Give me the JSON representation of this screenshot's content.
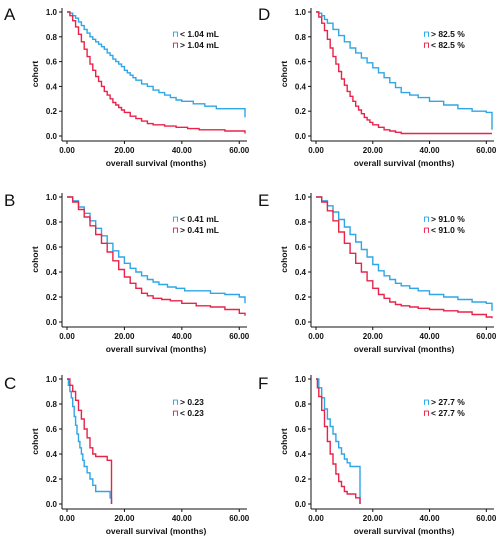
{
  "colors": {
    "blue": "#2fa6e6",
    "red": "#e8244a",
    "axis": "#111111"
  },
  "chart_data": [
    {
      "type": "line",
      "panel": "A",
      "xlabel": "overall survival (months)",
      "ylabel": "cohort",
      "xlim": [
        0,
        62
      ],
      "ylim": [
        0,
        1
      ],
      "xticks": [
        "0.00",
        "20.00",
        "40.00",
        "60.00"
      ],
      "yticks": [
        "0.0",
        "0.2",
        "0.4",
        "0.6",
        "0.8",
        "1.0"
      ],
      "legend": [
        {
          "marker": "⊓",
          "text": "< 1.04 mL",
          "color": "blue"
        },
        {
          "marker": "⊓",
          "text": "> 1.04 mL",
          "color": "red"
        }
      ],
      "series": [
        {
          "color": "blue",
          "x": [
            0,
            1,
            2,
            3,
            4,
            5,
            6,
            7,
            8,
            9,
            10,
            11,
            12,
            13,
            14,
            15,
            16,
            17,
            18,
            19,
            20,
            21,
            22,
            23,
            24,
            26,
            28,
            30,
            32,
            34,
            36,
            38,
            40,
            44,
            48,
            52,
            56,
            60,
            62
          ],
          "y": [
            1.0,
            0.99,
            0.97,
            0.95,
            0.92,
            0.89,
            0.86,
            0.83,
            0.8,
            0.78,
            0.76,
            0.74,
            0.72,
            0.7,
            0.67,
            0.65,
            0.62,
            0.6,
            0.58,
            0.56,
            0.53,
            0.51,
            0.49,
            0.47,
            0.45,
            0.42,
            0.4,
            0.37,
            0.35,
            0.33,
            0.31,
            0.29,
            0.28,
            0.26,
            0.24,
            0.22,
            0.22,
            0.22,
            0.15
          ]
        },
        {
          "color": "red",
          "x": [
            0,
            1,
            2,
            3,
            4,
            5,
            6,
            7,
            8,
            9,
            10,
            11,
            12,
            13,
            14,
            15,
            16,
            17,
            18,
            19,
            20,
            22,
            24,
            26,
            28,
            30,
            34,
            38,
            42,
            46,
            50,
            55,
            60,
            62
          ],
          "y": [
            1.0,
            0.97,
            0.93,
            0.88,
            0.82,
            0.76,
            0.7,
            0.64,
            0.58,
            0.53,
            0.48,
            0.44,
            0.4,
            0.36,
            0.33,
            0.3,
            0.27,
            0.25,
            0.23,
            0.21,
            0.19,
            0.16,
            0.14,
            0.12,
            0.1,
            0.09,
            0.08,
            0.07,
            0.06,
            0.05,
            0.05,
            0.04,
            0.04,
            0.02
          ]
        }
      ]
    },
    {
      "type": "line",
      "panel": "B",
      "xlabel": "overall survival (months)",
      "ylabel": "cohort",
      "xlim": [
        0,
        62
      ],
      "ylim": [
        0,
        1
      ],
      "xticks": [
        "0.00",
        "20.00",
        "40.00",
        "60.00"
      ],
      "yticks": [
        "0.0",
        "0.2",
        "0.4",
        "0.6",
        "0.8",
        "1.0"
      ],
      "legend": [
        {
          "marker": "⊓",
          "text": "< 0.41 mL",
          "color": "blue"
        },
        {
          "marker": "⊓",
          "text": "> 0.41 mL",
          "color": "red"
        }
      ],
      "series": [
        {
          "color": "blue",
          "x": [
            0,
            2,
            4,
            6,
            8,
            10,
            12,
            14,
            16,
            18,
            20,
            22,
            24,
            26,
            28,
            30,
            32,
            35,
            38,
            41,
            45,
            50,
            55,
            60,
            62
          ],
          "y": [
            1.0,
            0.97,
            0.92,
            0.87,
            0.81,
            0.75,
            0.69,
            0.63,
            0.57,
            0.52,
            0.47,
            0.43,
            0.4,
            0.37,
            0.34,
            0.32,
            0.3,
            0.28,
            0.27,
            0.25,
            0.25,
            0.23,
            0.22,
            0.2,
            0.15
          ]
        },
        {
          "color": "red",
          "x": [
            0,
            2,
            4,
            6,
            8,
            10,
            12,
            14,
            16,
            18,
            20,
            22,
            24,
            26,
            28,
            30,
            33,
            36,
            40,
            45,
            50,
            55,
            60,
            62
          ],
          "y": [
            1.0,
            0.96,
            0.9,
            0.84,
            0.77,
            0.7,
            0.63,
            0.56,
            0.49,
            0.42,
            0.36,
            0.31,
            0.27,
            0.23,
            0.21,
            0.19,
            0.18,
            0.17,
            0.15,
            0.13,
            0.12,
            0.1,
            0.07,
            0.05
          ]
        }
      ]
    },
    {
      "type": "line",
      "panel": "C",
      "xlabel": "overall survival (months)",
      "ylabel": "cohort",
      "xlim": [
        0,
        62
      ],
      "ylim": [
        0,
        1
      ],
      "xticks": [
        "0.00",
        "20.00",
        "40.00",
        "60.00"
      ],
      "yticks": [
        "0.0",
        "0.2",
        "0.4",
        "0.6",
        "0.8",
        "1.0"
      ],
      "legend": [
        {
          "marker": "⊓",
          "text": "> 0.23",
          "color": "blue"
        },
        {
          "marker": "⊓",
          "text": "< 0.23",
          "color": "red"
        }
      ],
      "series": [
        {
          "color": "blue",
          "x": [
            0,
            0.5,
            1,
            1.5,
            2,
            2.5,
            3,
            3.5,
            4,
            4.5,
            5,
            5.5,
            6,
            7,
            8,
            9,
            10,
            11,
            12,
            13,
            14,
            15,
            15.5
          ],
          "y": [
            1.0,
            0.95,
            0.9,
            0.85,
            0.78,
            0.7,
            0.63,
            0.56,
            0.5,
            0.45,
            0.4,
            0.35,
            0.3,
            0.25,
            0.2,
            0.15,
            0.1,
            0.1,
            0.1,
            0.1,
            0.1,
            0.05,
            0.0
          ]
        },
        {
          "color": "red",
          "x": [
            0,
            1,
            2,
            3,
            4,
            5,
            6,
            7,
            8,
            9,
            10,
            11,
            12,
            13,
            14,
            15,
            15.5
          ],
          "y": [
            1.0,
            0.95,
            0.9,
            0.83,
            0.75,
            0.68,
            0.6,
            0.53,
            0.45,
            0.4,
            0.38,
            0.38,
            0.38,
            0.38,
            0.35,
            0.35,
            0.0
          ]
        }
      ]
    },
    {
      "type": "line",
      "panel": "D",
      "xlabel": "overall survival (months)",
      "ylabel": "cohort",
      "xlim": [
        0,
        62
      ],
      "ylim": [
        0,
        1
      ],
      "xticks": [
        "0.00",
        "20.00",
        "40.00",
        "60.00"
      ],
      "yticks": [
        "0.0",
        "0.2",
        "0.4",
        "0.6",
        "0.8",
        "1.0"
      ],
      "legend": [
        {
          "marker": "⊓",
          "text": "> 82.5 %",
          "color": "blue"
        },
        {
          "marker": "⊓",
          "text": "< 82.5 %",
          "color": "red"
        }
      ],
      "series": [
        {
          "color": "blue",
          "x": [
            0,
            1,
            2,
            3,
            4,
            6,
            8,
            10,
            12,
            14,
            16,
            18,
            20,
            22,
            24,
            26,
            28,
            30,
            33,
            36,
            40,
            45,
            50,
            55,
            60,
            62
          ],
          "y": [
            1.0,
            0.99,
            0.97,
            0.94,
            0.91,
            0.86,
            0.81,
            0.76,
            0.71,
            0.67,
            0.63,
            0.59,
            0.55,
            0.51,
            0.47,
            0.43,
            0.39,
            0.35,
            0.33,
            0.31,
            0.28,
            0.25,
            0.22,
            0.2,
            0.19,
            0.05
          ]
        },
        {
          "color": "red",
          "x": [
            0,
            1,
            2,
            3,
            4,
            5,
            6,
            7,
            8,
            9,
            10,
            11,
            12,
            13,
            14,
            15,
            16,
            17,
            18,
            19,
            20,
            22,
            24,
            26,
            28,
            30,
            35,
            40,
            45,
            50,
            55,
            60,
            62
          ],
          "y": [
            1.0,
            0.96,
            0.91,
            0.85,
            0.78,
            0.71,
            0.64,
            0.58,
            0.52,
            0.46,
            0.41,
            0.36,
            0.32,
            0.28,
            0.24,
            0.21,
            0.18,
            0.15,
            0.13,
            0.11,
            0.09,
            0.07,
            0.05,
            0.04,
            0.03,
            0.02,
            0.02,
            0.02,
            0.02,
            0.02,
            0.02,
            0.02,
            0.02
          ]
        }
      ]
    },
    {
      "type": "line",
      "panel": "E",
      "xlabel": "overall survival (months)",
      "ylabel": "cohort",
      "xlim": [
        0,
        62
      ],
      "ylim": [
        0,
        1
      ],
      "xticks": [
        "0.00",
        "20.00",
        "40.00",
        "60.00"
      ],
      "yticks": [
        "0.0",
        "0.2",
        "0.4",
        "0.6",
        "0.8",
        "1.0"
      ],
      "legend": [
        {
          "marker": "⊓",
          "text": "> 91.0 %",
          "color": "blue"
        },
        {
          "marker": "⊓",
          "text": "< 91.0 %",
          "color": "red"
        }
      ],
      "series": [
        {
          "color": "blue",
          "x": [
            0,
            2,
            4,
            6,
            8,
            10,
            12,
            14,
            16,
            18,
            20,
            22,
            24,
            26,
            28,
            30,
            33,
            36,
            40,
            45,
            50,
            55,
            60,
            62
          ],
          "y": [
            1.0,
            0.97,
            0.93,
            0.88,
            0.82,
            0.76,
            0.7,
            0.64,
            0.58,
            0.52,
            0.46,
            0.41,
            0.37,
            0.34,
            0.31,
            0.29,
            0.27,
            0.25,
            0.22,
            0.2,
            0.18,
            0.16,
            0.15,
            0.09
          ]
        },
        {
          "color": "red",
          "x": [
            0,
            2,
            4,
            6,
            8,
            10,
            12,
            14,
            16,
            18,
            20,
            22,
            24,
            26,
            28,
            30,
            33,
            36,
            40,
            45,
            50,
            55,
            60,
            62
          ],
          "y": [
            1.0,
            0.96,
            0.89,
            0.81,
            0.72,
            0.63,
            0.55,
            0.47,
            0.4,
            0.33,
            0.27,
            0.22,
            0.19,
            0.16,
            0.14,
            0.13,
            0.12,
            0.11,
            0.1,
            0.09,
            0.08,
            0.06,
            0.04,
            0.03
          ]
        }
      ]
    },
    {
      "type": "line",
      "panel": "F",
      "xlabel": "overall survival (months)",
      "ylabel": "cohort",
      "xlim": [
        0,
        62
      ],
      "ylim": [
        0,
        1
      ],
      "xticks": [
        "0.00",
        "20.00",
        "40.00",
        "60.00"
      ],
      "yticks": [
        "0.0",
        "0.2",
        "0.4",
        "0.6",
        "0.8",
        "1.0"
      ],
      "legend": [
        {
          "marker": "⊓",
          "text": "> 27.7 %",
          "color": "blue"
        },
        {
          "marker": "⊓",
          "text": "< 27.7 %",
          "color": "red"
        }
      ],
      "series": [
        {
          "color": "blue",
          "x": [
            0,
            1,
            2,
            3,
            4,
            5,
            6,
            7,
            8,
            9,
            10,
            11,
            12,
            13,
            14,
            15,
            15.5
          ],
          "y": [
            1.0,
            0.93,
            0.85,
            0.76,
            0.68,
            0.62,
            0.56,
            0.5,
            0.45,
            0.4,
            0.36,
            0.33,
            0.3,
            0.3,
            0.3,
            0.3,
            0.0
          ]
        },
        {
          "color": "red",
          "x": [
            0,
            0.5,
            1,
            2,
            3,
            4,
            5,
            6,
            7,
            8,
            9,
            10,
            11,
            12,
            13,
            14,
            15,
            15.5
          ],
          "y": [
            1.0,
            0.93,
            0.86,
            0.75,
            0.62,
            0.5,
            0.4,
            0.32,
            0.24,
            0.18,
            0.14,
            0.1,
            0.08,
            0.08,
            0.08,
            0.05,
            0.05,
            0.0
          ]
        }
      ]
    }
  ]
}
